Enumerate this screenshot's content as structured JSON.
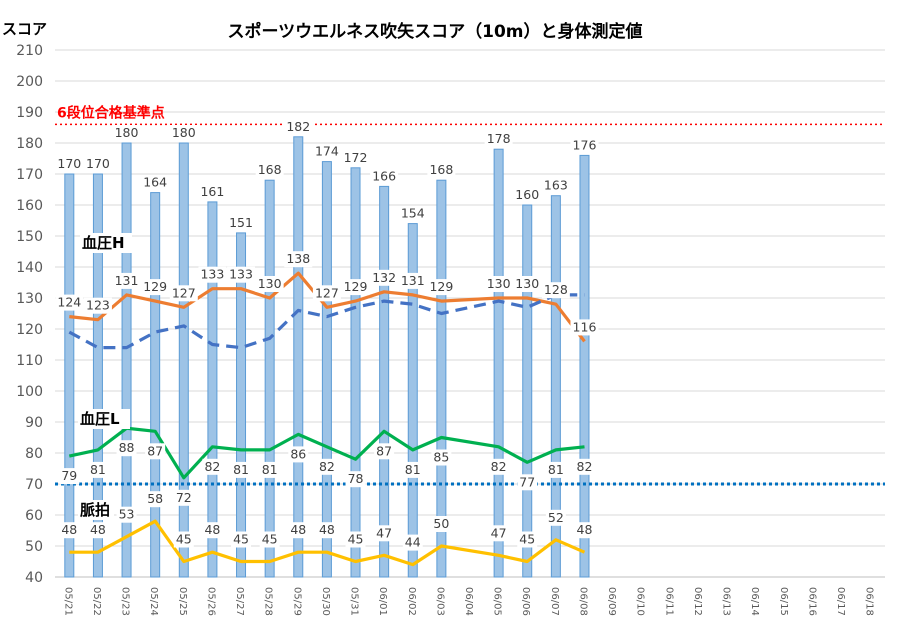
{
  "chart_data": {
    "type": "bar",
    "title": "スポーツウエルネス吹矢スコア（10m）と身体測定値",
    "ylabel": "スコア",
    "ylim": [
      40,
      210
    ],
    "yticks": [
      40,
      50,
      60,
      70,
      80,
      90,
      100,
      110,
      120,
      130,
      140,
      150,
      160,
      170,
      180,
      190,
      200,
      210
    ],
    "grid": true,
    "categories": [
      "05/21",
      "05/22",
      "05/23",
      "05/24",
      "05/25",
      "05/26",
      "05/27",
      "05/28",
      "05/29",
      "05/30",
      "05/31",
      "06/01",
      "06/02",
      "06/03",
      "06/04",
      "06/05",
      "06/06",
      "06/07",
      "06/08",
      "06/09",
      "06/10",
      "06/11",
      "06/12",
      "06/13",
      "06/14",
      "06/15",
      "06/16",
      "06/17",
      "06/18"
    ],
    "series": [
      {
        "name": "スコア",
        "kind": "bar",
        "color": "#9DC3E6",
        "values": [
          170,
          170,
          180,
          164,
          180,
          161,
          151,
          168,
          182,
          174,
          172,
          166,
          154,
          168,
          null,
          178,
          160,
          163,
          176,
          null,
          null,
          null,
          null,
          null,
          null,
          null,
          null,
          null,
          null
        ]
      },
      {
        "name": "血圧H",
        "kind": "line",
        "color": "#ED7D31",
        "values": [
          124,
          123,
          131,
          129,
          127,
          133,
          133,
          130,
          138,
          127,
          129,
          132,
          131,
          129,
          null,
          130,
          130,
          128,
          116,
          null,
          null,
          null,
          null,
          null,
          null,
          null,
          null,
          null,
          null
        ]
      },
      {
        "name": "",
        "kind": "dashed-trend",
        "color": "#4472C4",
        "values": [
          119,
          114,
          114,
          119,
          121,
          115,
          114,
          117,
          126,
          124,
          127,
          129,
          128,
          125,
          null,
          129,
          127,
          131,
          131,
          null,
          null,
          null,
          null,
          null,
          null,
          null,
          null,
          null,
          null
        ]
      },
      {
        "name": "血圧L",
        "kind": "line",
        "color": "#00B050",
        "values": [
          79,
          81,
          88,
          87,
          72,
          82,
          81,
          81,
          86,
          82,
          78,
          87,
          81,
          85,
          null,
          82,
          77,
          81,
          82,
          null,
          null,
          null,
          null,
          null,
          null,
          null,
          null,
          null,
          null
        ]
      },
      {
        "name": "脈拍",
        "kind": "line",
        "color": "#FFC000",
        "values": [
          48,
          48,
          53,
          58,
          45,
          48,
          45,
          45,
          48,
          48,
          45,
          47,
          44,
          50,
          null,
          47,
          45,
          52,
          48,
          null,
          null,
          null,
          null,
          null,
          null,
          null,
          null,
          null,
          null
        ]
      }
    ],
    "annotations": [
      {
        "text": "6段位合格基準点",
        "y": 186,
        "color": "#FF0000",
        "style": "dotted"
      },
      {
        "text": "",
        "y": 70,
        "color": "#0070C0",
        "style": "dotted"
      }
    ]
  }
}
